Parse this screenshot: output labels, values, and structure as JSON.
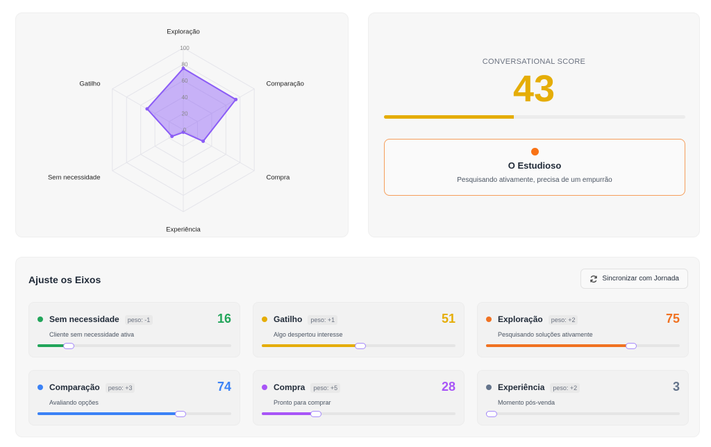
{
  "chart_data": {
    "type": "radar",
    "axes": [
      "Exploração",
      "Comparação",
      "Compra",
      "Experiência",
      "Sem necessidade",
      "Gatilho"
    ],
    "values": [
      75,
      74,
      28,
      3,
      16,
      51
    ],
    "ticks": [
      "0",
      "20",
      "40",
      "60",
      "80",
      "100"
    ],
    "range": [
      0,
      100
    ],
    "color": "#8b5cf6"
  },
  "score": {
    "label": "CONVERSATIONAL SCORE",
    "value": "43",
    "percent": 43,
    "color": "#e5ad07"
  },
  "persona": {
    "title": "O Estudioso",
    "description": "Pesquisando ativamente, precisa de um empurrão",
    "color": "#f97316"
  },
  "axes_panel": {
    "title": "Ajuste os Eixos",
    "sync_label": "Sincronizar com Jornada",
    "items": [
      {
        "name": "Sem necessidade",
        "peso": "peso: -1",
        "value": "16",
        "percent": 16,
        "description": "Cliente sem necessidade ativa",
        "color": "#22a55a"
      },
      {
        "name": "Gatilho",
        "peso": "peso: +1",
        "value": "51",
        "percent": 51,
        "description": "Algo despertou interesse",
        "color": "#e5ad07"
      },
      {
        "name": "Exploração",
        "peso": "peso: +2",
        "value": "75",
        "percent": 75,
        "description": "Pesquisando soluções ativamente",
        "color": "#f07222"
      },
      {
        "name": "Comparação",
        "peso": "peso: +3",
        "value": "74",
        "percent": 74,
        "description": "Avaliando opções",
        "color": "#3b82f6"
      },
      {
        "name": "Compra",
        "peso": "peso: +5",
        "value": "28",
        "percent": 28,
        "description": "Pronto para comprar",
        "color": "#a855f7"
      },
      {
        "name": "Experiência",
        "peso": "peso: +2",
        "value": "3",
        "percent": 3,
        "description": "Momento pós-venda",
        "color": "#64748b"
      }
    ]
  }
}
